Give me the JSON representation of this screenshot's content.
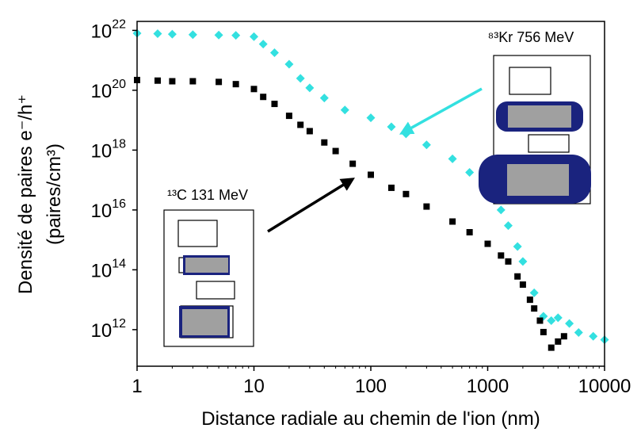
{
  "chart_data": {
    "type": "scatter",
    "x_label": "Distance radiale au chemin de l'ion (nm)",
    "y_label": [
      "Densité de paires e⁻/h⁺",
      "(paires/cm³)"
    ],
    "annotations": [
      "⁸³Kr 756 MeV",
      "¹³C 131 MeV"
    ],
    "log_x": true,
    "log_y": true,
    "xlim": [
      1,
      10000
    ],
    "xticks": [
      1,
      10,
      100,
      1000,
      10000
    ],
    "ylim": [
      60000000000.0,
      2e+22
    ],
    "yticks": [
      {
        "value": 1000000000000.0,
        "label": "10",
        "exponent": "12"
      },
      {
        "value": 100000000000000.0,
        "label": "10",
        "exponent": "14"
      },
      {
        "value": 1e+16,
        "label": "10",
        "exponent": "16"
      },
      {
        "value": 1e+18,
        "label": "10",
        "exponent": "18"
      },
      {
        "value": 1e+20,
        "label": "10",
        "exponent": "20"
      },
      {
        "value": 1e+22,
        "label": "10",
        "exponent": "22"
      }
    ],
    "series": [
      {
        "color": "#33e0e0",
        "marker": "diamond",
        "x": [
          1,
          1.5,
          2,
          3,
          5,
          7,
          10,
          12,
          15,
          20,
          25,
          30,
          40,
          60,
          100,
          150,
          200,
          300,
          500,
          700,
          1000,
          1300,
          1500,
          1800,
          2000,
          2500,
          3000,
          3500,
          4000,
          5000,
          6000,
          8000,
          10000
        ],
        "values": [
          8e+21,
          7.8e+21,
          7.5e+21,
          7.2e+21,
          7e+21,
          6.8e+21,
          6.2e+21,
          3.5e+21,
          1.8e+21,
          7.4e+20,
          2.5e+20,
          1.2e+20,
          5.5e+19,
          2.2e+19,
          1.2e+19,
          6e+18,
          3.5e+18,
          1.5e+18,
          5.1e+17,
          1.8e+17,
          4.6e+16,
          1e+16,
          3000000000000000.0,
          600000000000000.0,
          190000000000000.0,
          17000000000000.0,
          2800000000000.0,
          2000000000000.0,
          2500000000000.0,
          1600000000000.0,
          800000000000.0,
          600000000000.0,
          460000000000.0
        ]
      },
      {
        "color": "#000000",
        "marker": "square",
        "x": [
          1,
          1.5,
          2,
          3,
          5,
          7,
          10,
          12,
          15,
          20,
          25,
          30,
          40,
          50,
          70,
          100,
          150,
          200,
          300,
          500,
          700,
          1000,
          1300,
          1500,
          1800,
          2000,
          2300,
          2500,
          2800,
          3000,
          3500,
          4000,
          4500
        ],
        "values": [
          2.2e+20,
          2.1e+20,
          2e+20,
          2e+20,
          1.9e+20,
          1.6e+20,
          1.1e+20,
          6e+19,
          3.5e+19,
          1.4e+19,
          7e+18,
          4.3e+18,
          1.8e+18,
          9.3e+17,
          3.5e+17,
          1.5e+17,
          5.5e+16,
          3.4e+16,
          1.3e+16,
          4100000000000000.0,
          1800000000000000.0,
          740000000000000.0,
          300000000000000.0,
          190000000000000.0,
          60000000000000.0,
          32000000000000.0,
          10000000000000.0,
          5100000000000.0,
          2000000000000.0,
          830000000000.0,
          250000000000.0,
          400000000000.0,
          600000000000.0
        ]
      }
    ]
  }
}
